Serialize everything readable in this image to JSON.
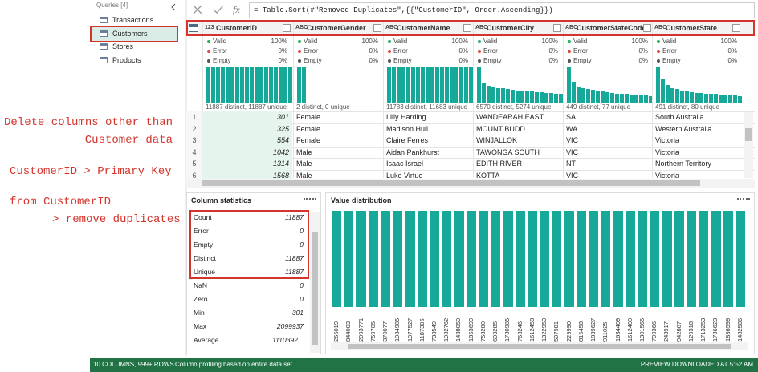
{
  "queries": {
    "header": "Queries [4]",
    "items": [
      "Transactions",
      "Customers",
      "Stores",
      "Products"
    ],
    "selected": 1
  },
  "formula": {
    "fx": "fx",
    "text": "= Table.Sort(#\"Removed Duplicates\",{{\"CustomerID\", Order.Ascending}})"
  },
  "quality_labels": [
    "Valid",
    "Error",
    "Empty"
  ],
  "columns": [
    {
      "type": "123",
      "name": "CustomerID",
      "quality": [
        "100%",
        "0%",
        "0%"
      ],
      "summary": "11887 distinct, 11887 unique",
      "histogram": [
        100,
        100,
        100,
        100,
        100,
        100,
        100,
        100,
        100,
        100,
        100,
        100,
        100,
        100,
        100,
        100,
        100,
        100
      ]
    },
    {
      "type": "ABC",
      "name": "CustomerGender",
      "quality": [
        "100%",
        "0%",
        "0%"
      ],
      "summary": "2 distinct, 0 unique",
      "histogram": [
        100,
        100
      ]
    },
    {
      "type": "ABC",
      "name": "CustomerName",
      "quality": [
        "100%",
        "0%",
        "0%"
      ],
      "summary": "11783 distinct, 11683 unique",
      "histogram": [
        100,
        100,
        100,
        100,
        100,
        100,
        100,
        100,
        100,
        100,
        100,
        100,
        100,
        100,
        100,
        100,
        100,
        100
      ]
    },
    {
      "type": "ABC",
      "name": "CustomerCity",
      "quality": [
        "100%",
        "0%",
        "0%"
      ],
      "summary": "6570 distinct, 5274 unique",
      "histogram": [
        100,
        55,
        48,
        45,
        42,
        40,
        38,
        36,
        34,
        33,
        32,
        31,
        30,
        29,
        28,
        27,
        26,
        25
      ]
    },
    {
      "type": "ABC",
      "name": "CustomerStateCode",
      "quality": [
        "100%",
        "0%",
        "0%"
      ],
      "summary": "449 distinct, 77 unique",
      "histogram": [
        100,
        60,
        45,
        40,
        38,
        36,
        34,
        32,
        30,
        28,
        26,
        25,
        24,
        23,
        22,
        21,
        20,
        19
      ]
    },
    {
      "type": "ABC",
      "name": "CustomerState",
      "quality": [
        "100%",
        "0%",
        "0%"
      ],
      "summary": "491 distinct, 80 unique",
      "histogram": [
        100,
        65,
        50,
        42,
        38,
        35,
        33,
        30,
        28,
        27,
        26,
        25,
        24,
        23,
        22,
        21,
        20,
        19
      ]
    }
  ],
  "rows": [
    [
      1,
      301,
      "Female",
      "Lilly Harding",
      "WANDEARAH EAST",
      "SA",
      "South Australia"
    ],
    [
      2,
      325,
      "Female",
      "Madison Hull",
      "MOUNT BUDD",
      "WA",
      "Western Australia"
    ],
    [
      3,
      554,
      "Female",
      "Claire Ferres",
      "WINJALLOK",
      "VIC",
      "Victoria"
    ],
    [
      4,
      1042,
      "Male",
      "Aidan Pankhurst",
      "TAWONGA SOUTH",
      "VIC",
      "Victoria"
    ],
    [
      5,
      1314,
      "Male",
      "Isaac Israel",
      "EDITH RIVER",
      "NT",
      "Northern Territory"
    ],
    [
      6,
      1568,
      "Male",
      "Luke Virtue",
      "KOTTA",
      "VIC",
      "Victoria"
    ]
  ],
  "column_statistics": {
    "title": "Column statistics",
    "rows": [
      [
        "Count",
        11887
      ],
      [
        "Error",
        0
      ],
      [
        "Empty",
        0
      ],
      [
        "Distinct",
        11887
      ],
      [
        "Unique",
        11887
      ],
      [
        "NaN",
        0
      ],
      [
        "Zero",
        0
      ],
      [
        "Min",
        301
      ],
      [
        "Max",
        2099937
      ],
      [
        "Average",
        "1110392..."
      ]
    ]
  },
  "value_distribution": {
    "title": "Value distribution",
    "labels": [
      "266019",
      "844003",
      "2093771",
      "759705",
      "370077",
      "1984985",
      "1977527",
      "1187306",
      "738549",
      "1982762",
      "1438050",
      "1853699",
      "758280",
      "693285",
      "1730985",
      "763246",
      "1612458",
      "1322959",
      "507981",
      "229990",
      "815458",
      "1839627",
      "911025",
      "1634409",
      "1612400",
      "1301565",
      "799366",
      "243917",
      "942807",
      "129318",
      "1713253",
      "1736623",
      "1836599",
      "1482586"
    ],
    "values": [
      1,
      1,
      1,
      1,
      1,
      1,
      1,
      1,
      1,
      1,
      1,
      1,
      1,
      1,
      1,
      1,
      1,
      1,
      1,
      1,
      1,
      1,
      1,
      1,
      1,
      1,
      1,
      1,
      1,
      1,
      1,
      1,
      1,
      1
    ]
  },
  "annotations": [
    "Delete columns other than",
    "Customer data",
    "CustomerID > Primary Key",
    "from CustomerID",
    "> remove duplicates"
  ],
  "status": {
    "left": "10 COLUMNS, 999+ ROWS",
    "middle": "Column profiling based on entire data set",
    "right": "PREVIEW DOWNLOADED AT 5:52 AM"
  }
}
